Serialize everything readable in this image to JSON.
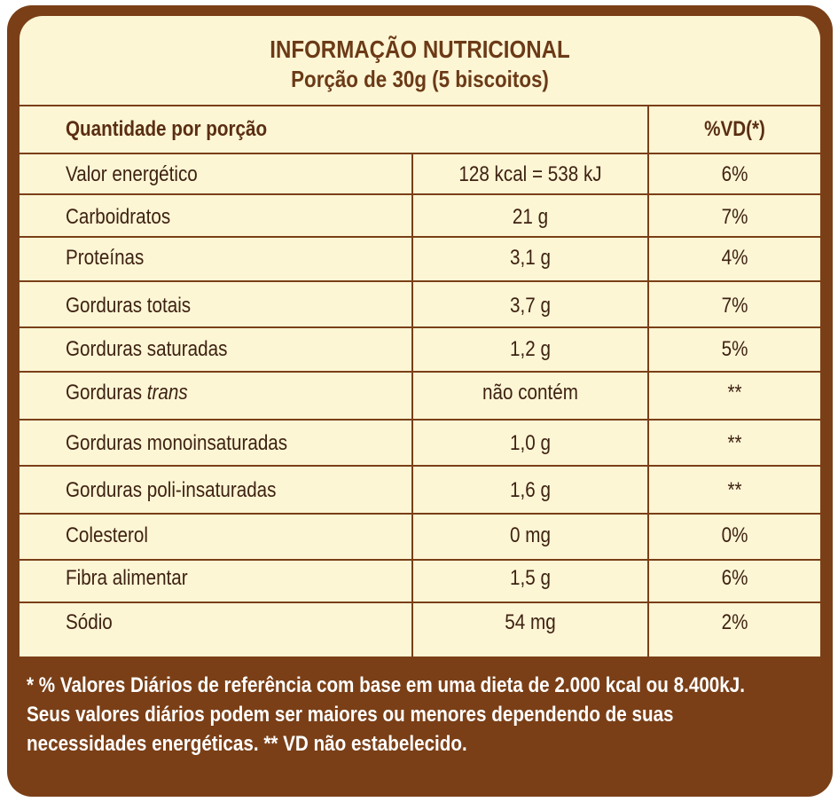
{
  "header": {
    "title": "INFORMAÇÃO NUTRICIONAL",
    "subtitle": "Porção de 30g (5 biscoitos)"
  },
  "columns": {
    "quantity": "Quantidade por porção",
    "dv": "%VD(*)"
  },
  "rows": [
    {
      "name": "Valor energético",
      "amount": "128 kcal = 538 kJ",
      "dv": "6%"
    },
    {
      "name": "Carboidratos",
      "amount": "21 g",
      "dv": "7%"
    },
    {
      "name": "Proteínas",
      "amount": "3,1 g",
      "dv": "4%"
    },
    {
      "name": "Gorduras totais",
      "amount": "3,7 g",
      "dv": "7%"
    },
    {
      "name": "Gorduras saturadas",
      "amount": "1,2 g",
      "dv": "5%"
    },
    {
      "name": "Gorduras ",
      "name_italic": "trans",
      "amount": "não contém",
      "dv": "**"
    },
    {
      "name": "Gorduras monoinsaturadas",
      "amount": "1,0 g",
      "dv": "**"
    },
    {
      "name": "Gorduras poli-insaturadas",
      "amount": "1,6 g",
      "dv": "**"
    },
    {
      "name": "Colesterol",
      "amount": "0 mg",
      "dv": "0%"
    },
    {
      "name": "Fibra alimentar",
      "amount": "1,5 g",
      "dv": "6%"
    },
    {
      "name": "Sódio",
      "amount": "54 mg",
      "dv": "2%"
    }
  ],
  "footer": {
    "line1": "* % Valores Diários de referência com base em uma dieta de 2.000 kcal ou 8.400kJ.",
    "line2": "Seus valores diários podem ser maiores ou menores dependendo de suas",
    "line3": "necessidades energéticas. ** VD não estabelecido."
  },
  "colors": {
    "frame": "#7a3f17",
    "panel": "#fdf6d5",
    "text": "#3e2212"
  }
}
